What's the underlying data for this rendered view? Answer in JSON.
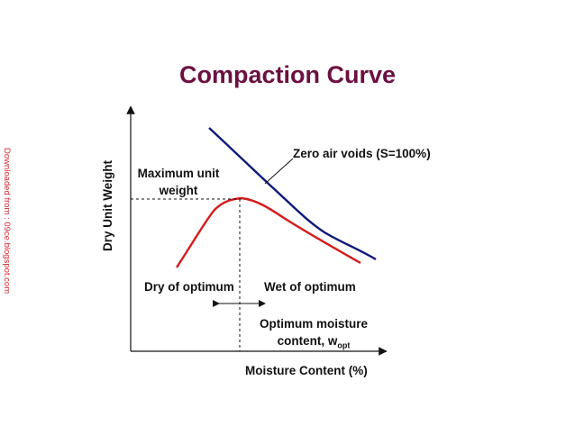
{
  "title": "Compaction Curve",
  "watermark": "Downloaded from : 09ce.blogspot.com",
  "axes": {
    "ylabel": "Dry Unit Weight",
    "xlabel": "Moisture Content (%)"
  },
  "labels": {
    "zero_air_voids": "Zero air voids (S=100%)",
    "max_unit_weight": "Maximum unit weight",
    "dry_of_optimum": "Dry of optimum",
    "wet_of_optimum": "Wet of optimum",
    "optimum_moisture": "Optimum moisture content, w",
    "optimum_sub": "opt"
  },
  "colors": {
    "title": "#6b1040",
    "compaction_curve": "#d61b1b",
    "zero_air_voids_curve": "#0d1a7a",
    "watermark": "#d4262b"
  }
}
